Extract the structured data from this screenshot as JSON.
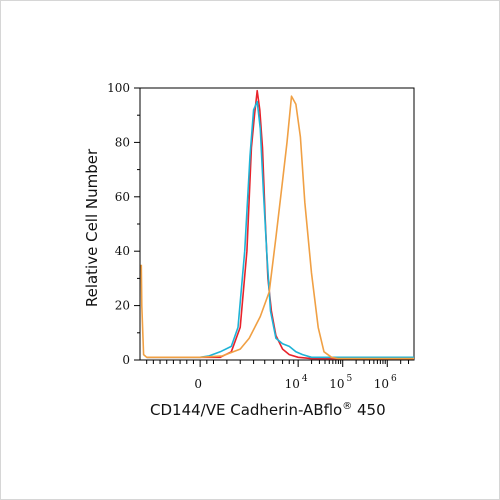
{
  "chart_data": {
    "type": "line",
    "title": "",
    "xlabel": "CD144/VE Cadherin-ABflo",
    "xlabel_reg": "®",
    "xlabel_suffix": " 450",
    "ylabel": "Relative Cell Number",
    "x_scale": "biexponential",
    "ylim": [
      0,
      100
    ],
    "y_ticks": [
      "0",
      "20",
      "40",
      "60",
      "80",
      "100"
    ],
    "x_ticks": [
      {
        "base": "0",
        "exp": ""
      },
      {
        "base": "10",
        "exp": "4"
      },
      {
        "base": "10",
        "exp": "5"
      },
      {
        "base": "10",
        "exp": "6"
      }
    ],
    "series": [
      {
        "color": "#e8232b",
        "x": [
          -1.2,
          0,
          0.2,
          0.45,
          0.7,
          0.9,
          1.05,
          1.15,
          1.22,
          1.28,
          1.34,
          1.4,
          1.46,
          1.52,
          1.6,
          1.7,
          1.85,
          2.0,
          2.2,
          2.5,
          4.8
        ],
        "y": [
          1,
          1,
          1,
          1,
          3,
          12,
          40,
          78,
          90,
          99,
          92,
          78,
          52,
          30,
          18,
          9,
          4,
          2,
          1,
          0.5,
          0.5
        ]
      },
      {
        "color": "#1eb3d6",
        "x": [
          -1.2,
          0,
          0.2,
          0.45,
          0.7,
          0.85,
          1.0,
          1.12,
          1.2,
          1.28,
          1.35,
          1.42,
          1.5,
          1.58,
          1.7,
          1.85,
          2.0,
          2.15,
          2.3,
          2.5,
          4.8
        ],
        "y": [
          1,
          1,
          1.5,
          3,
          5,
          12,
          40,
          75,
          92,
          95,
          85,
          62,
          38,
          18,
          8,
          6,
          5,
          3,
          2,
          1,
          1
        ]
      },
      {
        "color": "#f0a044",
        "x": [
          -1.32,
          -1.31,
          -1.27,
          -1.2,
          0,
          0.5,
          0.9,
          1.1,
          1.35,
          1.55,
          1.7,
          1.85,
          1.95,
          2.05,
          2.15,
          2.25,
          2.35,
          2.5,
          2.65,
          2.78,
          2.95,
          3.1,
          4.8
        ],
        "y": [
          35,
          20,
          2,
          1,
          1,
          1.5,
          4,
          8,
          16,
          25,
          45,
          66,
          80,
          97,
          94,
          82,
          58,
          32,
          12,
          3,
          1,
          0.5,
          0.5
        ]
      }
    ]
  }
}
